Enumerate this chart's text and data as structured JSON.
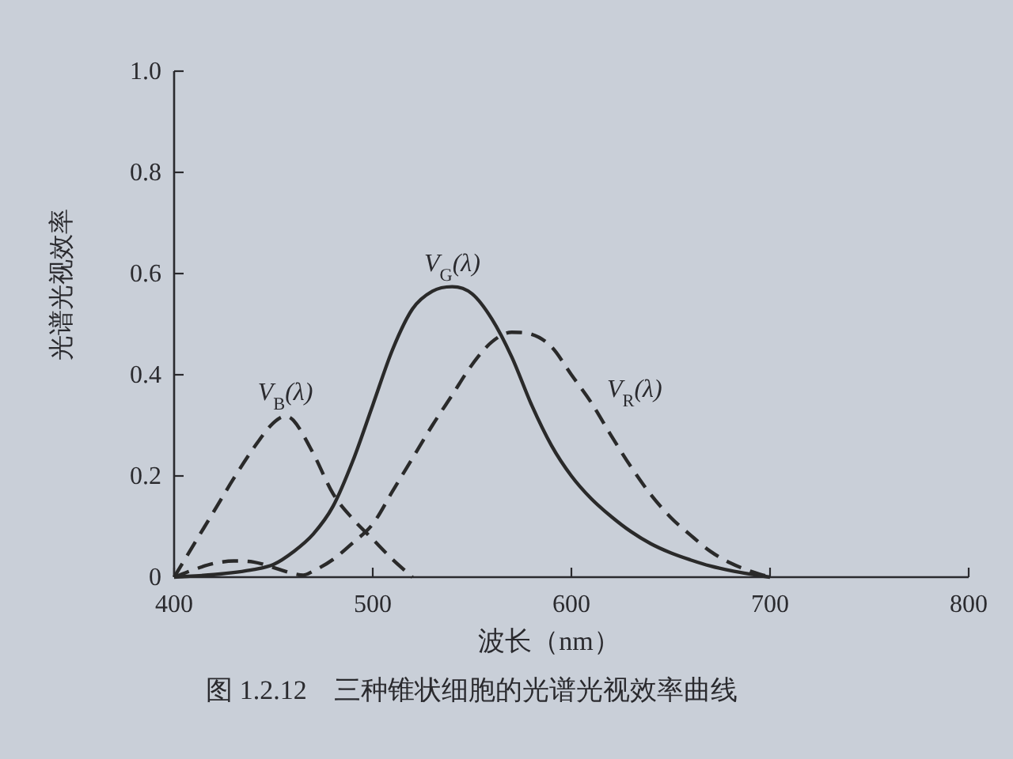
{
  "chart_data": {
    "type": "line",
    "title": "图 1.2.12　三种锥状细胞的光谱光视效率曲线",
    "xlabel": "波长（nm）",
    "ylabel": "光谱光视效率",
    "xlim": [
      400,
      800
    ],
    "ylim": [
      0,
      1
    ],
    "xticks": [
      400,
      500,
      600,
      700,
      800
    ],
    "yticks": [
      0,
      0.2,
      0.4,
      0.6,
      0.8,
      {
        "value": 1,
        "label": "1.0"
      }
    ],
    "series": [
      {
        "name": "V$_{B}$(λ)",
        "color": "#2a2a2a",
        "line_style": "dashed",
        "x": [
          400,
          410,
          420,
          430,
          440,
          450,
          456,
          460,
          470,
          480,
          490,
          500,
          510,
          520
        ],
        "values": [
          0,
          0.065,
          0.13,
          0.195,
          0.255,
          0.305,
          0.318,
          0.31,
          0.245,
          0.165,
          0.115,
          0.075,
          0.035,
          0
        ]
      },
      {
        "name": "V$_{G}$(λ)",
        "color": "#2a2a2a",
        "line_style": "solid",
        "x": [
          400,
          420,
          440,
          450,
          460,
          470,
          480,
          490,
          500,
          510,
          520,
          530,
          540,
          550,
          560,
          570,
          580,
          590,
          600,
          610,
          620,
          630,
          640,
          650,
          660,
          670,
          680,
          690,
          700
        ],
        "values": [
          0,
          0.005,
          0.015,
          0.025,
          0.05,
          0.085,
          0.14,
          0.23,
          0.34,
          0.45,
          0.53,
          0.565,
          0.574,
          0.56,
          0.51,
          0.435,
          0.34,
          0.26,
          0.2,
          0.155,
          0.12,
          0.09,
          0.066,
          0.048,
          0.034,
          0.022,
          0.013,
          0.006,
          0
        ]
      },
      {
        "name": "V$_{R}$(λ)",
        "color": "#2a2a2a",
        "line_style": "dashed",
        "x": [
          400,
          410,
          420,
          430,
          440,
          450,
          460,
          465,
          470,
          480,
          490,
          500,
          510,
          520,
          530,
          540,
          550,
          560,
          570,
          580,
          590,
          600,
          610,
          620,
          630,
          640,
          650,
          660,
          670,
          680,
          690,
          700
        ],
        "values": [
          0,
          0.015,
          0.027,
          0.032,
          0.03,
          0.019,
          0.007,
          0.004,
          0.012,
          0.035,
          0.068,
          0.105,
          0.17,
          0.235,
          0.3,
          0.36,
          0.42,
          0.465,
          0.484,
          0.48,
          0.455,
          0.4,
          0.345,
          0.28,
          0.218,
          0.163,
          0.118,
          0.083,
          0.051,
          0.028,
          0.012,
          0
        ]
      }
    ]
  }
}
